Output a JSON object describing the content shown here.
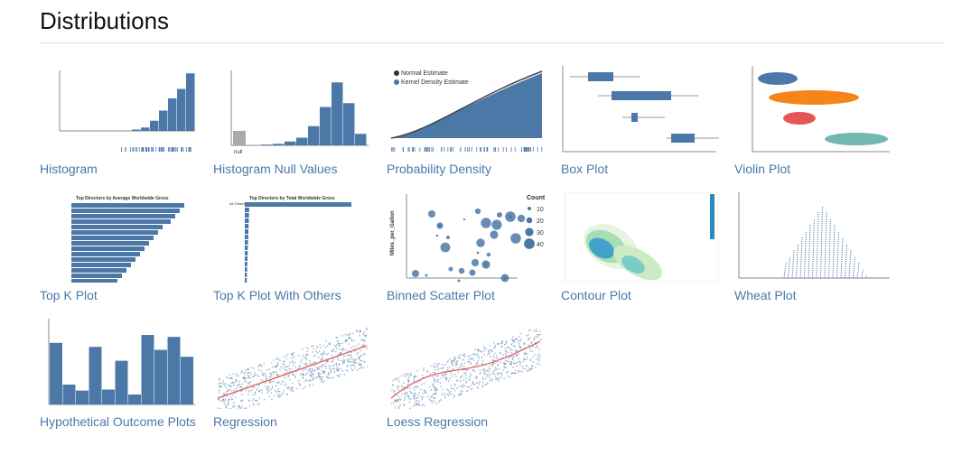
{
  "header": {
    "title": "Distributions"
  },
  "items": [
    {
      "label": "Histogram"
    },
    {
      "label": "Histogram Null Values",
      "texts": [
        "null"
      ]
    },
    {
      "label": "Probability Density",
      "texts": [
        "Normal Estimate",
        "Kernel Density Estimate"
      ]
    },
    {
      "label": "Box Plot"
    },
    {
      "label": "Violin Plot"
    },
    {
      "label": "Top K Plot",
      "texts": [
        "Top Directors by Average Worldwide Gross"
      ]
    },
    {
      "label": "Top K Plot With Others",
      "texts": [
        "Top Directors by Total Worldwide Gross",
        "All Others"
      ]
    },
    {
      "label": "Binned Scatter Plot",
      "texts": [
        "Count",
        "10",
        "20",
        "30",
        "40",
        "Miles_per_Gallon"
      ]
    },
    {
      "label": "Contour Plot"
    },
    {
      "label": "Wheat Plot"
    },
    {
      "label": "Hypothetical Outcome Plots"
    },
    {
      "label": "Regression"
    },
    {
      "label": "Loess Regression"
    }
  ]
}
